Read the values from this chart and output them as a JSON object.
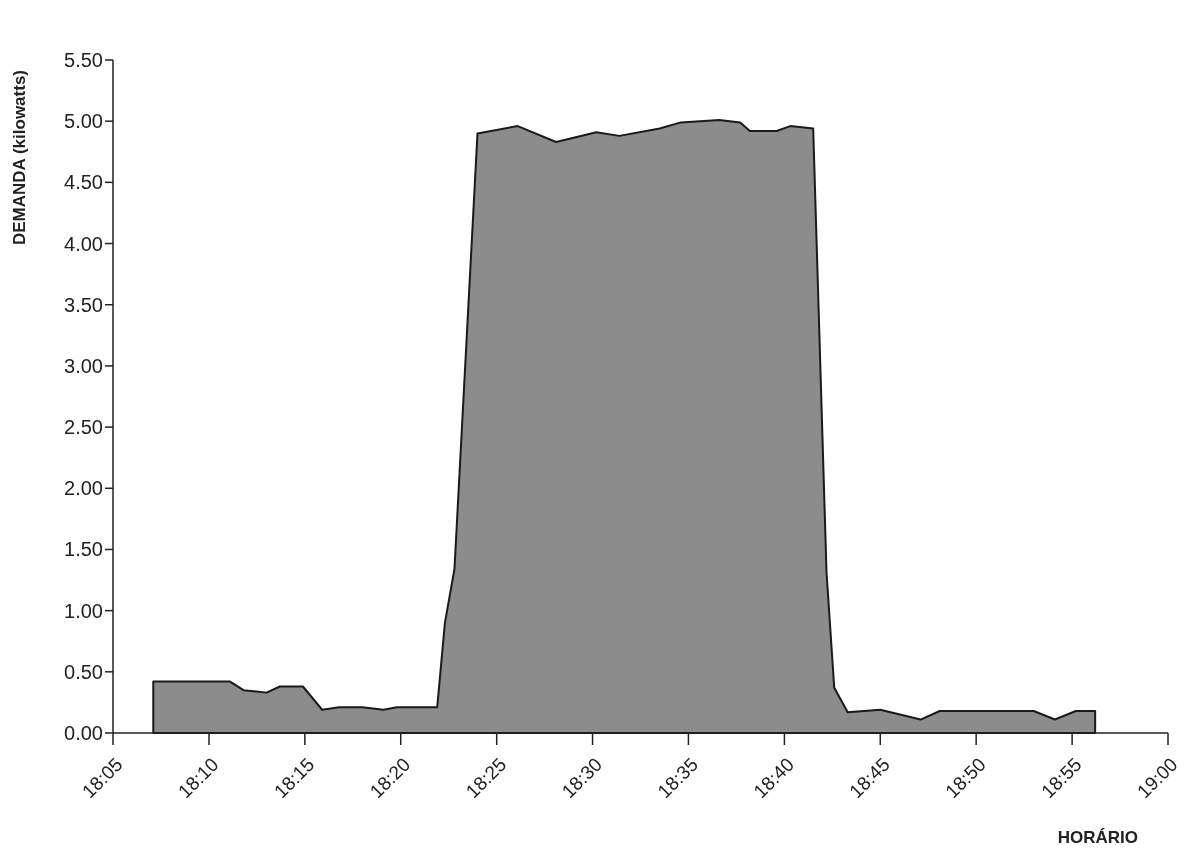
{
  "chart_data": {
    "type": "area",
    "xlabel": "HORÁRIO",
    "ylabel": "DEMANDA (kilowatts)",
    "x": [
      18.1183,
      18.185,
      18.1967,
      18.2167,
      18.2283,
      18.2483,
      18.265,
      18.28,
      18.3,
      18.3183,
      18.33,
      18.365,
      18.3717,
      18.38,
      18.4,
      18.435,
      18.4683,
      18.5033,
      18.5233,
      18.5583,
      18.5767,
      18.61,
      18.6283,
      18.6367,
      18.66,
      18.6717,
      18.6917,
      18.7033,
      18.71,
      18.7217,
      18.75,
      18.785,
      18.8017,
      18.8833,
      18.9017,
      18.92,
      18.9367
    ],
    "series": [
      {
        "color": "#8c8c8c",
        "values": [
          0.42,
          0.42,
          0.35,
          0.33,
          0.38,
          0.38,
          0.19,
          0.21,
          0.21,
          0.19,
          0.21,
          0.21,
          0.9,
          1.34,
          4.9,
          4.96,
          4.83,
          4.91,
          4.88,
          4.94,
          4.99,
          5.01,
          4.99,
          4.92,
          4.92,
          4.96,
          4.94,
          1.31,
          0.37,
          0.17,
          0.19,
          0.11,
          0.18,
          0.18,
          0.11,
          0.18,
          0.18
        ]
      }
    ],
    "xlim": [
      18.0833,
      19
    ],
    "xticks": [
      {
        "value": 18.0833,
        "label": "18:05"
      },
      {
        "value": 18.1667,
        "label": "18:10"
      },
      {
        "value": 18.25,
        "label": "18:15"
      },
      {
        "value": 18.3333,
        "label": "18:20"
      },
      {
        "value": 18.4167,
        "label": "18:25"
      },
      {
        "value": 18.5,
        "label": "18:30"
      },
      {
        "value": 18.5833,
        "label": "18:35"
      },
      {
        "value": 18.6667,
        "label": "18:40"
      },
      {
        "value": 18.75,
        "label": "18:45"
      },
      {
        "value": 18.8333,
        "label": "18:50"
      },
      {
        "value": 18.9167,
        "label": "18:55"
      },
      {
        "value": 19,
        "label": "19:00"
      }
    ],
    "ylim": [
      0,
      5.5
    ],
    "yticks": [
      {
        "value": 0,
        "label": "0.00"
      },
      {
        "value": 0.5,
        "label": "0.50"
      },
      {
        "value": 1,
        "label": "1.00"
      },
      {
        "value": 1.5,
        "label": "1.50"
      },
      {
        "value": 2,
        "label": "2.00"
      },
      {
        "value": 2.5,
        "label": "2.50"
      },
      {
        "value": 3,
        "label": "3.00"
      },
      {
        "value": 3.5,
        "label": "3.50"
      },
      {
        "value": 4,
        "label": "4.00"
      },
      {
        "value": 4.5,
        "label": "4.50"
      },
      {
        "value": 5,
        "label": "5.00"
      },
      {
        "value": 5.5,
        "label": "5.50"
      }
    ],
    "grid": false
  }
}
